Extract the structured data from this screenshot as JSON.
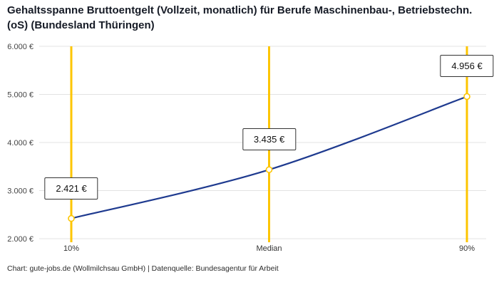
{
  "header": {
    "title": "Gehaltsspanne Bruttoentgelt (Vollzeit, monatlich) für Berufe Maschinenbau-, Betriebstechn.(oS) (Bundesland Thüringen)"
  },
  "chart_data": {
    "type": "line",
    "title": "Gehaltsspanne Bruttoentgelt (Vollzeit, monatlich) für Berufe Maschinenbau-, Betriebstechn.(oS) (Bundesland Thüringen)",
    "categories": [
      "10%",
      "Median",
      "90%"
    ],
    "values": [
      2421,
      3435,
      4956
    ],
    "point_labels": [
      "2.421 €",
      "3.435 €",
      "4.956 €"
    ],
    "ylim": [
      2000,
      6000
    ],
    "yticks": [
      2000,
      3000,
      4000,
      5000,
      6000
    ],
    "ytick_labels": [
      "2.000 €",
      "3.000 €",
      "4.000 €",
      "5.000 €",
      "6.000 €"
    ],
    "grid": true,
    "legend": "none",
    "colors": {
      "line": "#1e3a8f",
      "marker_fill": "#ffffff",
      "marker_stroke": "#fdc500",
      "vline": "#fdc500",
      "gridline": "#e3e3e3",
      "tick_text": "#444444"
    }
  },
  "footer": {
    "credit": "Chart: gute-jobs.de (Wollmilchsau GmbH) | Datenquelle: Bundesagentur für Arbeit"
  }
}
